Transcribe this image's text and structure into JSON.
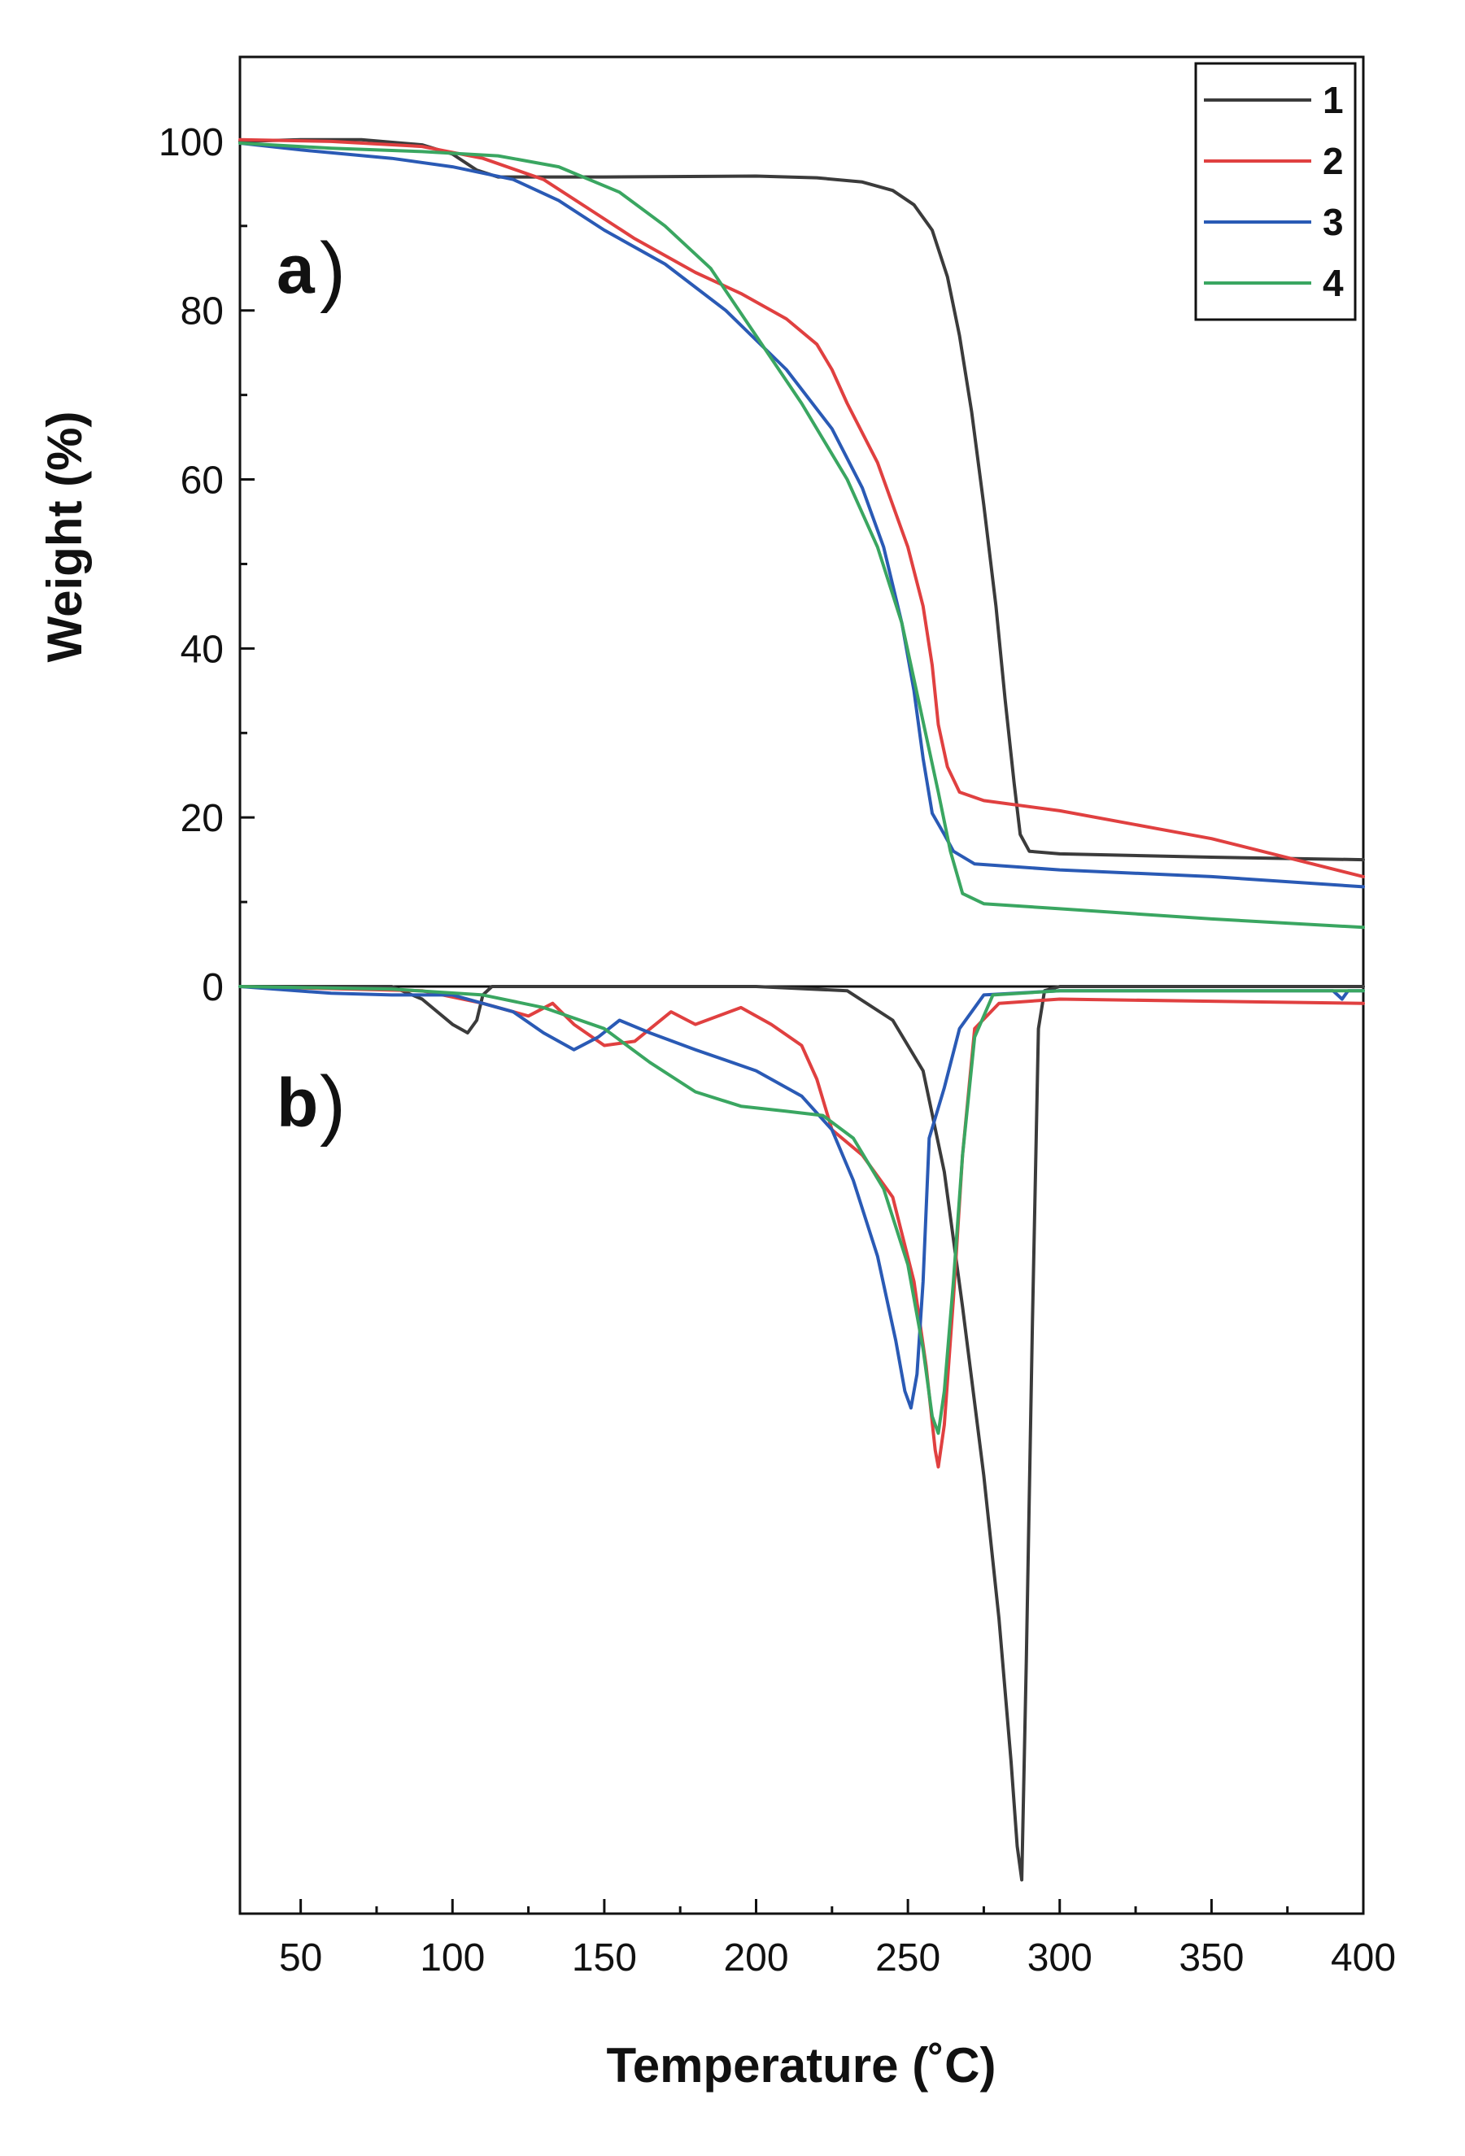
{
  "chart_data": [
    {
      "panel": "a",
      "type": "line",
      "panel_label": "a",
      "xlabel": "Temperature (˚C)",
      "ylabel": "Weight (%)",
      "xlim": [
        30,
        400
      ],
      "ylim": [
        0,
        110
      ],
      "x_ticks": [
        50,
        100,
        150,
        200,
        250,
        300,
        350,
        400
      ],
      "y_ticks": [
        0,
        20,
        40,
        60,
        80,
        100
      ],
      "legend_position": "top-right",
      "series": [
        {
          "name": "1",
          "color": "#3b3b3b",
          "points": [
            [
              30,
              100
            ],
            [
              50,
              100.2
            ],
            [
              70,
              100.2
            ],
            [
              90,
              99.6
            ],
            [
              100,
              98.5
            ],
            [
              108,
              96.6
            ],
            [
              115,
              95.8
            ],
            [
              150,
              95.8
            ],
            [
              200,
              95.9
            ],
            [
              220,
              95.7
            ],
            [
              235,
              95.2
            ],
            [
              245,
              94.2
            ],
            [
              252,
              92.5
            ],
            [
              258,
              89.5
            ],
            [
              263,
              84
            ],
            [
              267,
              77
            ],
            [
              271,
              68
            ],
            [
              275,
              57
            ],
            [
              279,
              45
            ],
            [
              282,
              34
            ],
            [
              285,
              24
            ],
            [
              287,
              18
            ],
            [
              290,
              16
            ],
            [
              300,
              15.7
            ],
            [
              350,
              15.3
            ],
            [
              400,
              15
            ]
          ]
        },
        {
          "name": "2",
          "color": "#e04040",
          "points": [
            [
              30,
              100.2
            ],
            [
              60,
              100
            ],
            [
              90,
              99.4
            ],
            [
              110,
              98
            ],
            [
              130,
              95.5
            ],
            [
              145,
              92
            ],
            [
              160,
              88.5
            ],
            [
              180,
              84.5
            ],
            [
              195,
              82
            ],
            [
              210,
              79
            ],
            [
              220,
              76
            ],
            [
              225,
              73
            ],
            [
              230,
              69
            ],
            [
              240,
              62
            ],
            [
              250,
              52
            ],
            [
              255,
              45
            ],
            [
              258,
              38
            ],
            [
              260,
              31
            ],
            [
              263,
              26
            ],
            [
              267,
              23
            ],
            [
              275,
              22
            ],
            [
              300,
              20.8
            ],
            [
              350,
              17.5
            ],
            [
              400,
              13
            ]
          ]
        },
        {
          "name": "3",
          "color": "#2a5ab5",
          "points": [
            [
              30,
              99.8
            ],
            [
              50,
              99
            ],
            [
              80,
              98
            ],
            [
              100,
              97
            ],
            [
              120,
              95.5
            ],
            [
              135,
              93
            ],
            [
              150,
              89.5
            ],
            [
              170,
              85.5
            ],
            [
              190,
              80
            ],
            [
              210,
              73
            ],
            [
              225,
              66
            ],
            [
              235,
              59
            ],
            [
              242,
              52
            ],
            [
              248,
              43
            ],
            [
              252,
              35
            ],
            [
              255,
              27
            ],
            [
              258,
              20.5
            ],
            [
              262,
              18
            ],
            [
              265,
              16
            ],
            [
              272,
              14.5
            ],
            [
              300,
              13.8
            ],
            [
              350,
              13
            ],
            [
              400,
              11.8
            ]
          ]
        },
        {
          "name": "4",
          "color": "#3aa661",
          "points": [
            [
              30,
              99.8
            ],
            [
              60,
              99.2
            ],
            [
              90,
              98.8
            ],
            [
              115,
              98.3
            ],
            [
              135,
              97
            ],
            [
              155,
              94
            ],
            [
              170,
              90
            ],
            [
              185,
              85
            ],
            [
              200,
              77
            ],
            [
              215,
              69
            ],
            [
              230,
              60
            ],
            [
              240,
              52
            ],
            [
              248,
              43
            ],
            [
              254,
              33
            ],
            [
              260,
              23
            ],
            [
              264,
              16
            ],
            [
              268,
              11
            ],
            [
              275,
              9.8
            ],
            [
              300,
              9.2
            ],
            [
              350,
              8
            ],
            [
              400,
              7
            ]
          ]
        }
      ]
    },
    {
      "panel": "b",
      "type": "line",
      "panel_label": "b",
      "xlabel": "Temperature (˚C)",
      "xlim": [
        30,
        400
      ],
      "ylim": [
        -110,
        0
      ],
      "y_ticks": [
        0
      ],
      "series": [
        {
          "name": "1",
          "color": "#3b3b3b",
          "points": [
            [
              30,
              0
            ],
            [
              80,
              0
            ],
            [
              90,
              -1.5
            ],
            [
              100,
              -4.5
            ],
            [
              105,
              -5.5
            ],
            [
              108,
              -4
            ],
            [
              110,
              -1
            ],
            [
              113,
              0
            ],
            [
              200,
              0
            ],
            [
              230,
              -0.5
            ],
            [
              245,
              -4
            ],
            [
              255,
              -10
            ],
            [
              262,
              -22
            ],
            [
              268,
              -38
            ],
            [
              275,
              -58
            ],
            [
              280,
              -75
            ],
            [
              284,
              -92
            ],
            [
              286,
              -102
            ],
            [
              287.5,
              -106
            ],
            [
              289,
              -80
            ],
            [
              291,
              -40
            ],
            [
              293,
              -5
            ],
            [
              295,
              -0.5
            ],
            [
              300,
              0
            ],
            [
              400,
              0
            ]
          ]
        },
        {
          "name": "2",
          "color": "#e04040",
          "points": [
            [
              30,
              0
            ],
            [
              90,
              -0.5
            ],
            [
              110,
              -2
            ],
            [
              125,
              -3.5
            ],
            [
              133,
              -2
            ],
            [
              140,
              -4.5
            ],
            [
              150,
              -7
            ],
            [
              160,
              -6.5
            ],
            [
              172,
              -3
            ],
            [
              180,
              -4.5
            ],
            [
              195,
              -2.5
            ],
            [
              205,
              -4.5
            ],
            [
              215,
              -7
            ],
            [
              220,
              -11
            ],
            [
              225,
              -17
            ],
            [
              235,
              -20
            ],
            [
              245,
              -25
            ],
            [
              252,
              -35
            ],
            [
              256,
              -45
            ],
            [
              259,
              -55
            ],
            [
              260,
              -57
            ],
            [
              262,
              -52
            ],
            [
              265,
              -37
            ],
            [
              268,
              -20
            ],
            [
              272,
              -5
            ],
            [
              280,
              -2
            ],
            [
              300,
              -1.5
            ],
            [
              400,
              -2
            ]
          ]
        },
        {
          "name": "3",
          "color": "#2a5ab5",
          "points": [
            [
              30,
              0
            ],
            [
              60,
              -0.8
            ],
            [
              80,
              -1
            ],
            [
              100,
              -1
            ],
            [
              120,
              -3
            ],
            [
              130,
              -5.5
            ],
            [
              140,
              -7.5
            ],
            [
              148,
              -6
            ],
            [
              155,
              -4
            ],
            [
              165,
              -5.5
            ],
            [
              180,
              -7.5
            ],
            [
              200,
              -10
            ],
            [
              215,
              -13
            ],
            [
              225,
              -17
            ],
            [
              232,
              -23
            ],
            [
              240,
              -32
            ],
            [
              246,
              -42
            ],
            [
              249,
              -48
            ],
            [
              251,
              -50
            ],
            [
              253,
              -46
            ],
            [
              255,
              -35
            ],
            [
              257,
              -18
            ],
            [
              262,
              -12
            ],
            [
              267,
              -5
            ],
            [
              275,
              -1
            ],
            [
              300,
              -0.5
            ],
            [
              390,
              -0.5
            ],
            [
              393,
              -1.5
            ],
            [
              395,
              -0.5
            ],
            [
              400,
              -0.5
            ]
          ]
        },
        {
          "name": "4",
          "color": "#3aa661",
          "points": [
            [
              30,
              0
            ],
            [
              80,
              -0.3
            ],
            [
              110,
              -1
            ],
            [
              130,
              -2.5
            ],
            [
              150,
              -5
            ],
            [
              165,
              -9
            ],
            [
              180,
              -12.5
            ],
            [
              195,
              -14.2
            ],
            [
              210,
              -14.8
            ],
            [
              222,
              -15.3
            ],
            [
              232,
              -18
            ],
            [
              242,
              -24
            ],
            [
              250,
              -33
            ],
            [
              255,
              -43
            ],
            [
              258,
              -51
            ],
            [
              260,
              -53
            ],
            [
              262,
              -48
            ],
            [
              265,
              -35
            ],
            [
              268,
              -20
            ],
            [
              272,
              -6
            ],
            [
              278,
              -1
            ],
            [
              300,
              -0.5
            ],
            [
              400,
              -0.5
            ]
          ]
        }
      ]
    }
  ]
}
